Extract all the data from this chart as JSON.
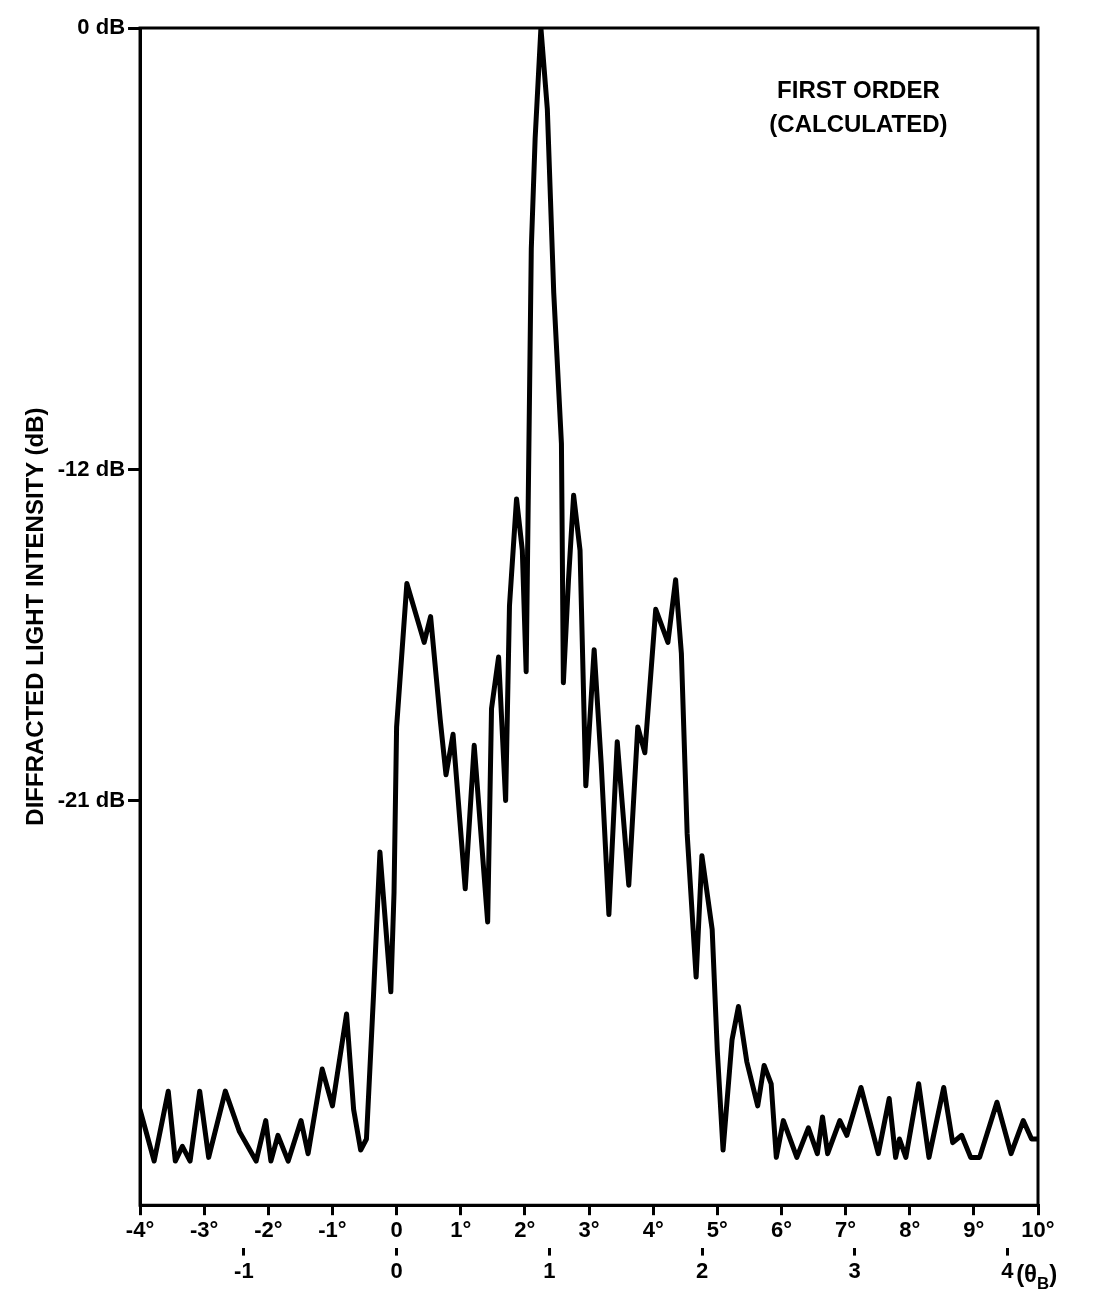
{
  "chart_data": {
    "type": "line",
    "ylabel": "DIFFRACTED LIGHT INTENSITY (dB)",
    "x2label": "(θ$_{B}$)",
    "annotations": [
      "FIRST ORDER",
      "(CALCULATED)"
    ],
    "xlim": [
      -4,
      10
    ],
    "xticks": [
      {
        "value": -4,
        "label": "-4°"
      },
      {
        "value": -3,
        "label": "-3°"
      },
      {
        "value": -2,
        "label": "-2°"
      },
      {
        "value": -1,
        "label": "-1°"
      },
      0,
      {
        "value": 1,
        "label": "1°"
      },
      {
        "value": 2,
        "label": "2°"
      },
      {
        "value": 3,
        "label": "3°"
      },
      {
        "value": 4,
        "label": "4°"
      },
      {
        "value": 5,
        "label": "5°"
      },
      {
        "value": 6,
        "label": "6°"
      },
      {
        "value": 7,
        "label": "7°"
      },
      {
        "value": 8,
        "label": "8°"
      },
      {
        "value": 9,
        "label": "9°"
      },
      {
        "value": 10,
        "label": "10°"
      }
    ],
    "x2lim": [
      -1.68,
      4.2
    ],
    "x2ticks": [
      -1,
      0,
      1,
      2,
      3,
      4
    ],
    "ylim": [
      -32,
      0
    ],
    "yticks": [
      {
        "value": 0,
        "label": "0 dB"
      },
      {
        "value": -12,
        "label": "-12 dB"
      },
      {
        "value": -21,
        "label": "-21 dB"
      }
    ],
    "marker": "none",
    "line_style": "solid",
    "series": [
      {
        "color": "#000000",
        "x": [
          -4.0,
          -3.78,
          -3.56,
          -3.45,
          -3.34,
          -3.22,
          -3.07,
          -2.93,
          -2.67,
          -2.45,
          -2.19,
          -2.04,
          -1.96,
          -1.85,
          -1.69,
          -1.49,
          -1.38,
          -1.16,
          -1.0,
          -0.78,
          -0.67,
          -0.56,
          -0.47,
          -0.36,
          -0.26,
          -0.09,
          -0.04,
          0.0,
          0.16,
          0.43,
          0.53,
          0.68,
          0.77,
          0.88,
          1.07,
          1.21,
          1.42,
          1.48,
          1.59,
          1.7,
          1.76,
          1.87,
          1.96,
          2.02,
          2.1,
          2.16,
          2.25,
          2.35,
          2.45,
          2.57,
          2.6,
          2.68,
          2.76,
          2.86,
          2.95,
          3.08,
          3.19,
          3.31,
          3.44,
          3.62,
          3.76,
          3.87,
          4.04,
          4.23,
          4.35,
          4.44,
          4.53,
          4.67,
          4.76,
          4.92,
          5.0,
          5.09,
          5.23,
          5.33,
          5.46,
          5.63,
          5.73,
          5.84,
          5.92,
          6.03,
          6.24,
          6.42,
          6.56,
          6.64,
          6.72,
          6.91,
          7.02,
          7.24,
          7.51,
          7.68,
          7.78,
          7.84,
          7.94,
          8.14,
          8.3,
          8.53,
          8.67,
          8.81,
          8.95,
          9.09,
          9.36,
          9.58,
          9.77,
          9.9,
          10.0
        ],
        "values": [
          -29.4,
          -30.8,
          -28.9,
          -30.8,
          -30.4,
          -30.8,
          -28.9,
          -30.7,
          -28.9,
          -30.0,
          -30.8,
          -29.7,
          -30.8,
          -30.1,
          -30.8,
          -29.7,
          -30.6,
          -28.3,
          -29.3,
          -26.8,
          -29.4,
          -30.5,
          -30.2,
          -26.3,
          -22.4,
          -26.2,
          -23.5,
          -19.0,
          -15.1,
          -16.7,
          -16.0,
          -18.8,
          -20.3,
          -19.2,
          -23.4,
          -19.5,
          -24.3,
          -18.5,
          -17.1,
          -21.0,
          -15.7,
          -12.8,
          -14.2,
          -17.5,
          -6.0,
          -3.0,
          0.0,
          -2.2,
          -7.2,
          -11.3,
          -17.8,
          -15.0,
          -12.7,
          -14.2,
          -20.6,
          -16.9,
          -20.0,
          -24.1,
          -19.4,
          -23.3,
          -19.0,
          -19.7,
          -15.8,
          -16.7,
          -15.0,
          -17.0,
          -21.9,
          -25.8,
          -22.5,
          -24.5,
          -27.8,
          -30.5,
          -27.5,
          -26.6,
          -28.1,
          -29.3,
          -28.2,
          -28.7,
          -30.7,
          -29.7,
          -30.7,
          -29.9,
          -30.6,
          -29.6,
          -30.6,
          -29.7,
          -30.1,
          -28.8,
          -30.6,
          -29.1,
          -30.7,
          -30.2,
          -30.7,
          -28.7,
          -30.7,
          -28.8,
          -30.3,
          -30.1,
          -30.7,
          -30.7,
          -29.2,
          -30.6,
          -29.7,
          -30.2,
          -30.2
        ]
      }
    ]
  }
}
